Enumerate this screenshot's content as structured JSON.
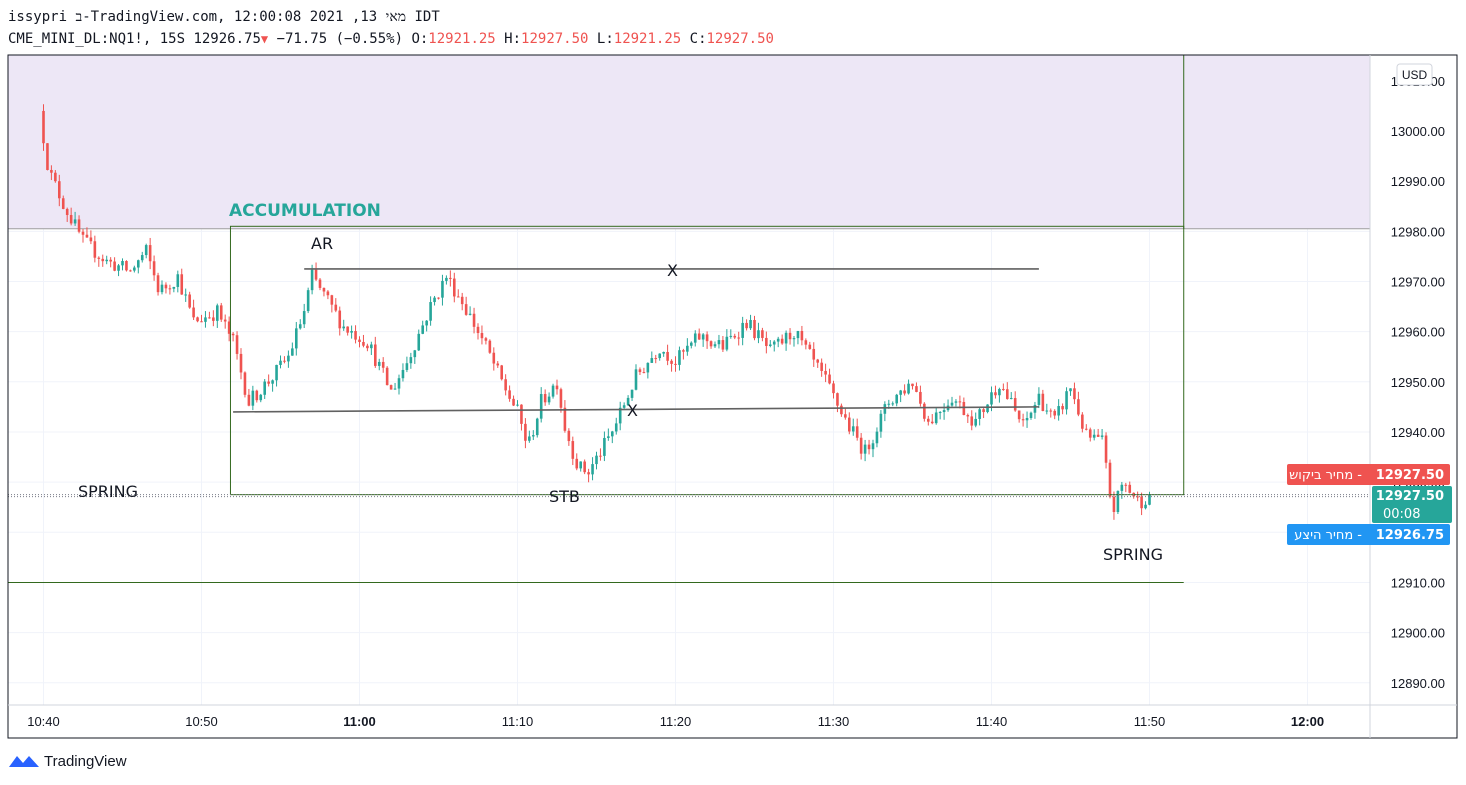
{
  "header": {
    "line1": "issypri ב-TradingView.com, מאי 13, 2021 12:00:08 IDT",
    "symbol": "CME_MINI_DL:NQ1!, 15S",
    "last": "12926.75",
    "change": "−71.75 (−0.55%)",
    "o_label": "O:",
    "o_value": "12921.25",
    "h_label": "H:",
    "h_value": "12927.50",
    "l_label": "L:",
    "l_value": "12921.25",
    "c_label": "C:",
    "c_value": "12927.50"
  },
  "currency_badge": "USD",
  "price_tags": {
    "ask_label": "מחיר ביקוש",
    "ask_price": "12927.50",
    "last_price": "12927.50",
    "countdown": "00:08",
    "bid_label": "מחיר היצע",
    "bid_price": "12926.75"
  },
  "annotations": {
    "accumulation": "ACCUMULATION",
    "ar": "AR",
    "x_top": "X",
    "x_mid": "X",
    "spring_left": "SPRING",
    "stb": "STB",
    "spring_right": "SPRING"
  },
  "brand": "TradingView",
  "colors": {
    "up": "#26a69a",
    "down": "#ef5350",
    "zone": "#ede7f6",
    "accumulation_text": "#26a69a",
    "box": "#33691e",
    "ask_bg": "#ef5350",
    "last_bg": "#26a69a",
    "bid_bg": "#2196f3"
  },
  "chart_data": {
    "type": "candlestick",
    "y_ticks": [
      "13000.00",
      "12990.00",
      "12980.00",
      "12970.00",
      "12960.00",
      "12950.00",
      "12940.00",
      "12930.00",
      "12920.00",
      "12910.00",
      "12900.00",
      "12890.00"
    ],
    "ylim": [
      12885,
      13012
    ],
    "x_ticks": [
      "10:40",
      "10:50",
      "11:00",
      "11:10",
      "11:20",
      "11:30",
      "11:40",
      "11:50",
      "12:00"
    ],
    "x_ticks_bold": [
      "11:00",
      "12:00"
    ],
    "close_path": [
      [
        "10:39:45",
        13004
      ],
      [
        "10:40:20",
        12992
      ],
      [
        "10:41:20",
        12985
      ],
      [
        "10:42:30",
        12978
      ],
      [
        "10:44:00",
        12974
      ],
      [
        "10:45:30",
        12972
      ],
      [
        "10:46:30",
        12976
      ],
      [
        "10:47:20",
        12968
      ],
      [
        "10:48:30",
        12971
      ],
      [
        "10:49:30",
        12962
      ],
      [
        "10:51:00",
        12964
      ],
      [
        "10:52:00",
        12958
      ],
      [
        "10:53:00",
        12946
      ],
      [
        "10:54:30",
        12951
      ],
      [
        "10:55:30",
        12955
      ],
      [
        "10:56:30",
        12964
      ],
      [
        "10:57:00",
        12971
      ],
      [
        "10:58:00",
        12966
      ],
      [
        "10:59:00",
        12961
      ],
      [
        "11:00:30",
        12958
      ],
      [
        "11:02:00",
        12948
      ],
      [
        "11:03:00",
        12954
      ],
      [
        "11:04:30",
        12965
      ],
      [
        "11:05:30",
        12971
      ],
      [
        "11:06:30",
        12966
      ],
      [
        "11:08:00",
        12957
      ],
      [
        "11:09:00",
        12950
      ],
      [
        "11:10:00",
        12944
      ],
      [
        "11:10:40",
        12937
      ],
      [
        "11:11:30",
        12946
      ],
      [
        "11:12:30",
        12950
      ],
      [
        "11:13:00",
        12941
      ],
      [
        "11:13:50",
        12933
      ],
      [
        "11:14:30",
        12932
      ],
      [
        "11:16:00",
        12940
      ],
      [
        "11:17:30",
        12951
      ],
      [
        "11:19:00",
        12957
      ],
      [
        "11:20:00",
        12954
      ],
      [
        "11:21:30",
        12959
      ],
      [
        "11:23:00",
        12957
      ],
      [
        "11:24:30",
        12962
      ],
      [
        "11:26:00",
        12956
      ],
      [
        "11:27:30",
        12960
      ],
      [
        "11:28:30",
        12955
      ],
      [
        "11:29:30",
        12950
      ],
      [
        "11:31:00",
        12941
      ],
      [
        "11:32:00",
        12936
      ],
      [
        "11:33:30",
        12946
      ],
      [
        "11:35:00",
        12950
      ],
      [
        "11:36:00",
        12942
      ],
      [
        "11:37:30",
        12947
      ],
      [
        "11:39:00",
        12942
      ],
      [
        "11:40:30",
        12950
      ],
      [
        "11:42:00",
        12941
      ],
      [
        "11:43:00",
        12947
      ],
      [
        "11:44:00",
        12942
      ],
      [
        "11:45:00",
        12949
      ],
      [
        "11:46:00",
        12939
      ],
      [
        "11:47:00",
        12938
      ],
      [
        "11:47:40",
        12924
      ],
      [
        "11:48:20",
        12930
      ],
      [
        "11:49:20",
        12926
      ],
      [
        "11:50:00",
        12927.5
      ]
    ],
    "resistance_zone": {
      "from": 12980.5,
      "to": 13015,
      "end_time": "11:52:10",
      "full_width_below": true
    },
    "accumulation_box": {
      "t1": "10:51:50",
      "t2": "11:52:10",
      "p1": 12981,
      "p2": 12927.5
    },
    "outer_box": {
      "t1": "10:39:45",
      "t2": "11:52:10",
      "p1": 13015,
      "p2": 12910
    },
    "lines": [
      {
        "t1": "10:56:30",
        "p1": 12972.5,
        "t2": "11:43:00",
        "p2": 12972.5
      },
      {
        "t1": "10:52:00",
        "p1": 12944,
        "t2": "11:43:00",
        "p2": 12945
      }
    ],
    "price_line": 12927.5
  }
}
